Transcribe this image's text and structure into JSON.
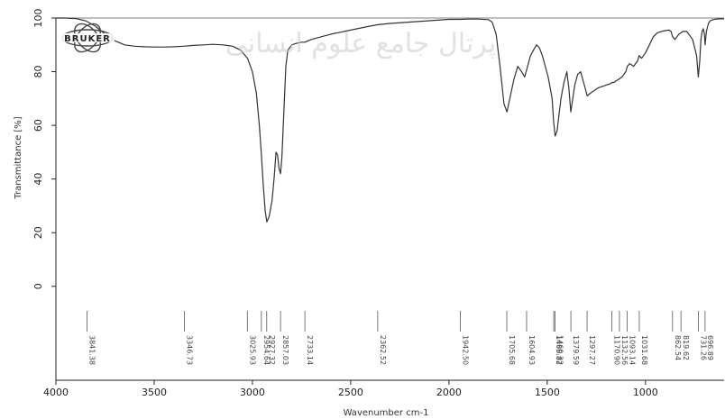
{
  "chart_data": {
    "type": "line",
    "title": "",
    "xlabel": "Wavenumber cm-1",
    "ylabel": "Transmittance [%]",
    "xlim": [
      4000,
      600
    ],
    "ylim": [
      -35,
      100
    ],
    "x_reversed": true,
    "grid": false,
    "legend": "none",
    "line_color": "#333333",
    "xticks": [
      4000,
      3500,
      3000,
      2500,
      2000,
      1500,
      1000
    ],
    "yticks": [
      0,
      20,
      40,
      60,
      80,
      100
    ],
    "series": [
      {
        "x": [
          4000,
          3950,
          3900,
          3850,
          3800,
          3750,
          3700,
          3650,
          3600,
          3550,
          3500,
          3450,
          3400,
          3350,
          3300,
          3250,
          3200,
          3150,
          3100,
          3060,
          3025,
          3000,
          2980,
          2965,
          2955,
          2945,
          2935,
          2927,
          2915,
          2900,
          2890,
          2880,
          2872,
          2865,
          2857,
          2850,
          2840,
          2830,
          2820,
          2800,
          2780,
          2750,
          2733,
          2700,
          2650,
          2600,
          2500,
          2400,
          2362,
          2300,
          2200,
          2100,
          2000,
          1942,
          1900,
          1850,
          1800,
          1780,
          1760,
          1740,
          1720,
          1705,
          1690,
          1670,
          1650,
          1630,
          1615,
          1600,
          1585,
          1570,
          1555,
          1540,
          1525,
          1510,
          1495,
          1485,
          1475,
          1468,
          1460,
          1450,
          1440,
          1430,
          1415,
          1400,
          1390,
          1380,
          1370,
          1360,
          1345,
          1330,
          1315,
          1300,
          1297,
          1280,
          1260,
          1240,
          1220,
          1200,
          1180,
          1171,
          1160,
          1152,
          1140,
          1120,
          1100,
          1093,
          1080,
          1060,
          1040,
          1032,
          1020,
          1000,
          980,
          960,
          940,
          920,
          900,
          880,
          870,
          862,
          850,
          840,
          830,
          820,
          810,
          800,
          790,
          780,
          760,
          740,
          731,
          724,
          718,
          712,
          706,
          700,
          697,
          690,
          680,
          670,
          660,
          650,
          640,
          620,
          600
        ],
        "y": [
          100,
          100,
          99.8,
          99,
          97,
          94,
          91.5,
          90,
          89.5,
          89.3,
          89.2,
          89.2,
          89.3,
          89.5,
          89.8,
          90,
          90.2,
          90,
          89.5,
          88,
          85,
          80,
          72,
          60,
          50,
          38,
          28,
          24,
          26,
          32,
          40,
          50,
          49,
          44,
          42,
          48,
          65,
          82,
          88,
          90,
          90.5,
          91,
          91,
          92,
          93,
          94,
          95.5,
          97,
          97.5,
          98,
          98.5,
          99,
          99.5,
          99.5,
          99.6,
          99.6,
          99.4,
          98.5,
          94,
          82,
          68,
          65,
          70,
          77,
          82,
          80,
          78,
          82,
          86,
          88,
          90,
          89,
          86,
          82,
          78,
          74,
          70,
          62,
          56,
          58,
          64,
          70,
          76,
          80,
          74,
          65,
          70,
          75,
          79,
          80,
          76,
          72,
          71,
          72,
          73,
          74,
          74.5,
          75,
          75.5,
          76,
          76,
          76.5,
          77,
          78,
          80,
          82,
          83,
          82,
          84,
          86,
          85,
          87,
          90,
          93,
          94.5,
          95,
          95.3,
          95.5,
          95,
          93,
          92,
          93,
          94,
          94.5,
          95,
          95,
          95,
          94,
          92,
          86,
          78,
          84,
          92,
          95,
          96,
          94,
          90,
          95,
          98,
          99,
          99.3,
          99.5,
          99.6,
          99.7,
          99.7
        ]
      }
    ],
    "peak_labels": [
      {
        "x": 3841.38,
        "label": "3841.38"
      },
      {
        "x": 3346.73,
        "label": "3346.73"
      },
      {
        "x": 3025.93,
        "label": "3025.93"
      },
      {
        "x": 2954.64,
        "label": "2954.64"
      },
      {
        "x": 2927.32,
        "label": "2927.32"
      },
      {
        "x": 2857.03,
        "label": "2857.03"
      },
      {
        "x": 2733.14,
        "label": "2733.14"
      },
      {
        "x": 2362.52,
        "label": "2362.52"
      },
      {
        "x": 1942.5,
        "label": "1942.50"
      },
      {
        "x": 1705.68,
        "label": "1705.68"
      },
      {
        "x": 1604.93,
        "label": "1604.93"
      },
      {
        "x": 1466.82,
        "label": "1466.82"
      },
      {
        "x": 1460.32,
        "label": "1460.32"
      },
      {
        "x": 1379.59,
        "label": "1379.59"
      },
      {
        "x": 1297.27,
        "label": "1297.27"
      },
      {
        "x": 1170.9,
        "label": "1170.90"
      },
      {
        "x": 1132.56,
        "label": "1132.56"
      },
      {
        "x": 1093.14,
        "label": "1093.14"
      },
      {
        "x": 1031.68,
        "label": "1031.68"
      },
      {
        "x": 862.54,
        "label": "862.54"
      },
      {
        "x": 819.62,
        "label": "819.62"
      },
      {
        "x": 731.26,
        "label": "731.26"
      },
      {
        "x": 696.89,
        "label": "696.89"
      }
    ]
  },
  "logo": {
    "text": "BRUKER",
    "name": "bruker-logo"
  },
  "watermark": {
    "text": "پرتال جامع علوم انسانی"
  }
}
